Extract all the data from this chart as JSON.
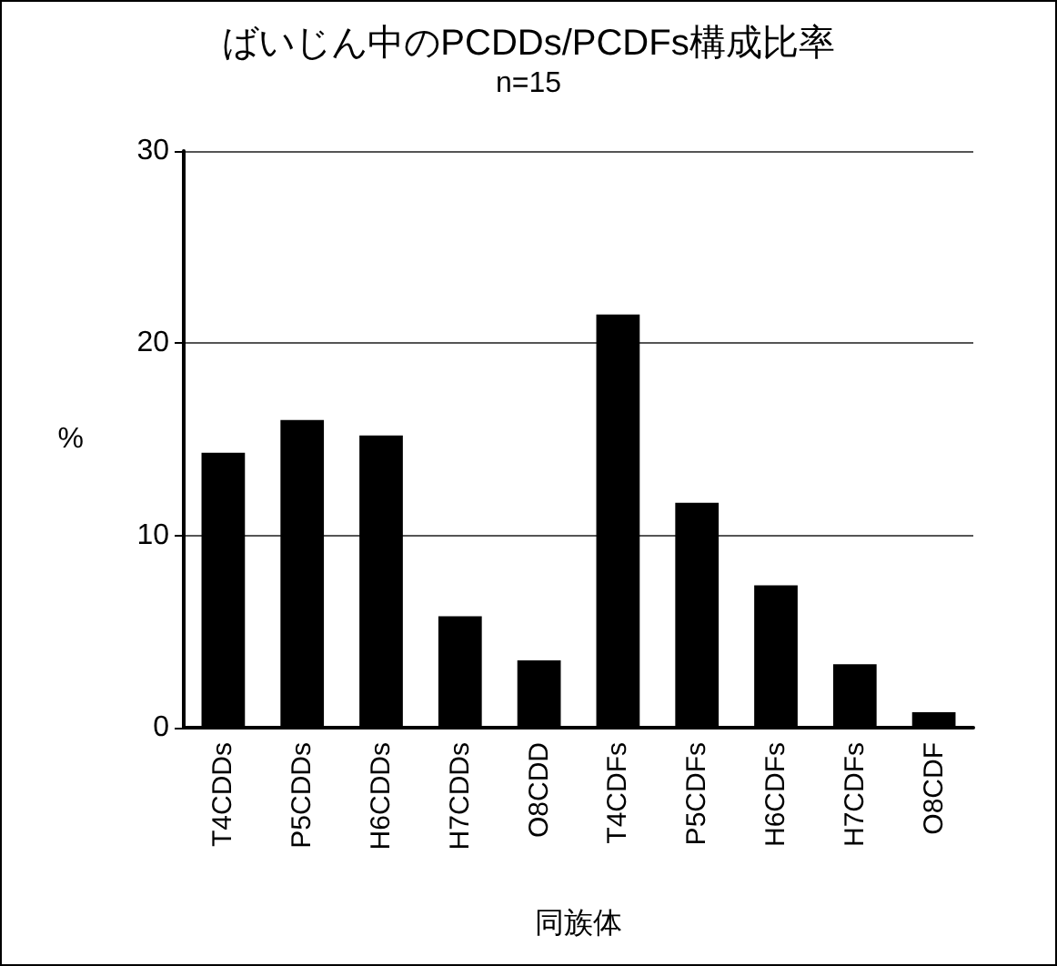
{
  "chart_data": {
    "type": "bar",
    "title": "ばいじん中のPCDDs/PCDFs構成比率",
    "subtitle": "n=15",
    "xlabel": "同族体",
    "ylabel": "%",
    "categories": [
      "T4CDDs",
      "P5CDDs",
      "H6CDDs",
      "H7CDDs",
      "O8CDD",
      "T4CDFs",
      "P5CDFs",
      "H6CDFs",
      "H7CDFs",
      "O8CDF"
    ],
    "values": [
      14.3,
      16.0,
      15.2,
      5.8,
      3.5,
      21.5,
      11.7,
      7.4,
      3.3,
      0.8
    ],
    "color": "#000000",
    "ylim": [
      0,
      30
    ],
    "yticks": [
      0,
      10,
      20,
      30
    ],
    "grid": "y"
  }
}
